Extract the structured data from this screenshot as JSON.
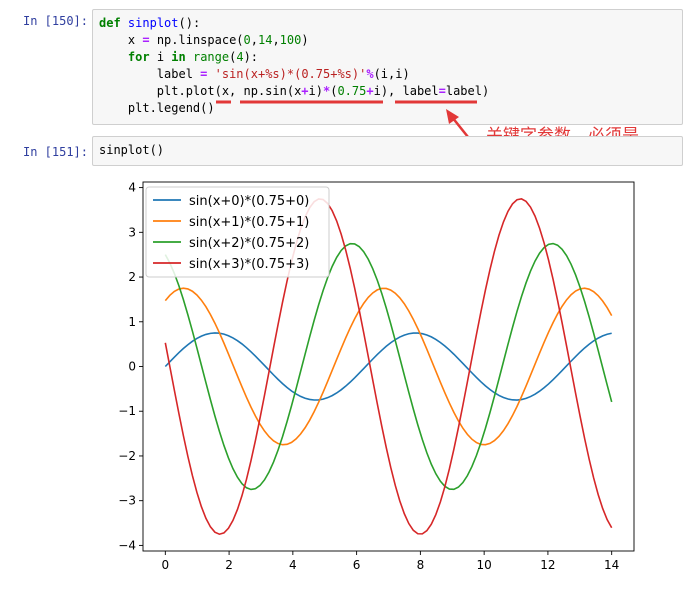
{
  "cell1": {
    "prompt": "In  [150]:",
    "lines": [
      "def sinplot():",
      "    x = np.linspace(0,14,100)",
      "    for i in range(4):",
      "        label = 'sin(x+%s)*(0.75+%s)'%(i,i)",
      "        plt.plot(x, np.sin(x+i)*(0.75+i), label=label)",
      "    plt.legend()"
    ]
  },
  "annotation": "关键字参数，必须是",
  "colors": {
    "annotation": "#e23838",
    "prompt": "#303f9f"
  },
  "cell2": {
    "prompt": "In  [151]:",
    "code": "sinplot()"
  },
  "chart_data": {
    "type": "line",
    "function": "np.sin(x+i)*(0.75+i)",
    "x_range": [
      0,
      14
    ],
    "n_points": 100,
    "series": [
      {
        "name": "sin(x+0)*(0.75+0)",
        "offset": 0,
        "amplitude": 0.75,
        "color": "#1f77b4"
      },
      {
        "name": "sin(x+1)*(0.75+1)",
        "offset": 1,
        "amplitude": 1.75,
        "color": "#ff7f0e"
      },
      {
        "name": "sin(x+2)*(0.75+2)",
        "offset": 2,
        "amplitude": 2.75,
        "color": "#2ca02c"
      },
      {
        "name": "sin(x+3)*(0.75+3)",
        "offset": 3,
        "amplitude": 3.75,
        "color": "#d62728"
      }
    ],
    "xticks": [
      0,
      2,
      4,
      6,
      8,
      10,
      12,
      14
    ],
    "yticks": [
      -4,
      -3,
      -2,
      -1,
      0,
      1,
      2,
      3,
      4
    ],
    "xlim": [
      -0.7,
      14.7
    ],
    "ylim": [
      -4.125,
      4.125
    ],
    "legend": "upper left",
    "grid": false
  }
}
